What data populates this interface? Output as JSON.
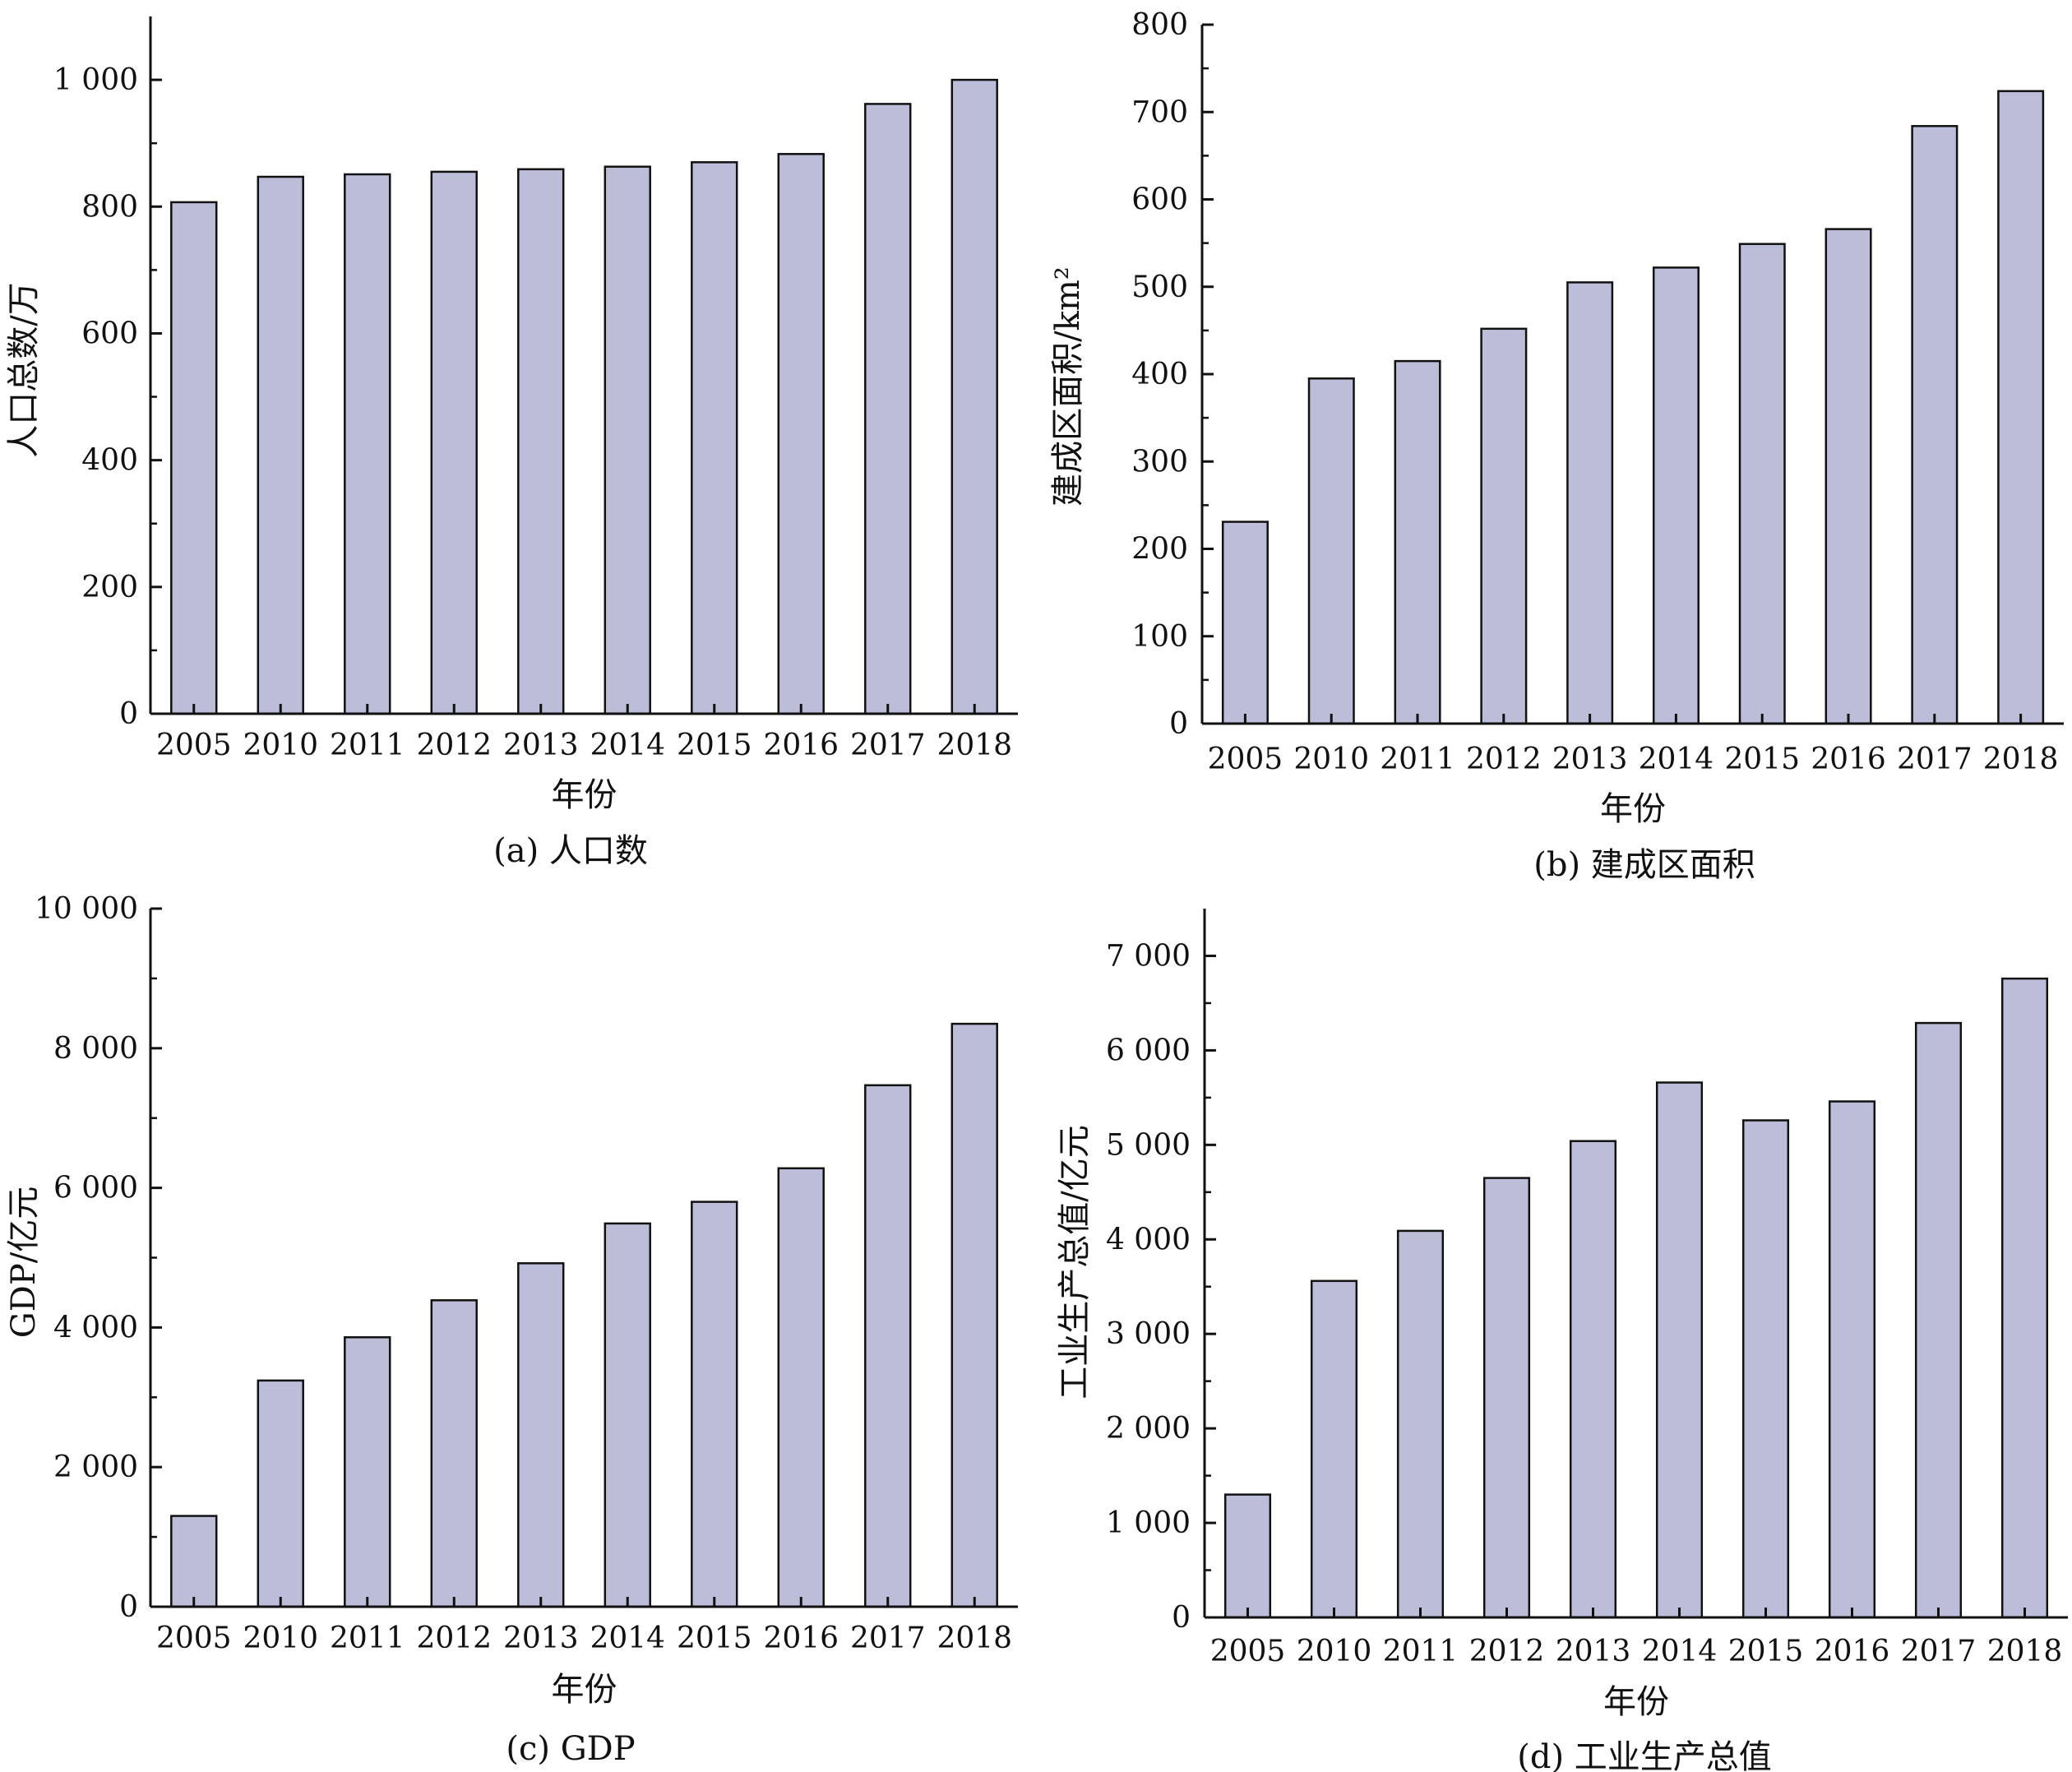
{
  "style": {
    "bar_fill": "#bcbdd9",
    "bar_stroke": "#111111",
    "axis_color": "#111111"
  },
  "chart_data": [
    {
      "type": "bar",
      "caption": "(a) 人口数",
      "categories": [
        "2005",
        "2010",
        "2011",
        "2012",
        "2013",
        "2014",
        "2015",
        "2016",
        "2017",
        "2018"
      ],
      "values": [
        807,
        847,
        851,
        855,
        859,
        863,
        870,
        883,
        962,
        1000
      ],
      "xlabel": "年份",
      "ylabel": "人口总数/万",
      "ylim": [
        0,
        1100
      ],
      "yticks": [
        0,
        200,
        400,
        600,
        800,
        1000
      ],
      "ytick_labels": [
        "0",
        "200",
        "400",
        "600",
        "800",
        "1 000"
      ],
      "grid": false
    },
    {
      "type": "bar",
      "caption": "(b) 建成区面积",
      "categories": [
        "2005",
        "2010",
        "2011",
        "2012",
        "2013",
        "2014",
        "2015",
        "2016",
        "2017",
        "2018"
      ],
      "values": [
        231,
        395,
        415,
        452,
        505,
        522,
        549,
        566,
        684,
        724
      ],
      "xlabel": "年份",
      "ylabel": "建成区面积/km²",
      "ylim": [
        0,
        800
      ],
      "yticks": [
        0,
        100,
        200,
        300,
        400,
        500,
        600,
        700,
        800
      ],
      "ytick_labels": [
        "0",
        "100",
        "200",
        "300",
        "400",
        "500",
        "600",
        "700",
        "800"
      ],
      "grid": false
    },
    {
      "type": "bar",
      "caption": "(c) GDP",
      "categories": [
        "2005",
        "2010",
        "2011",
        "2012",
        "2013",
        "2014",
        "2015",
        "2016",
        "2017",
        "2018"
      ],
      "values": [
        1300,
        3240,
        3860,
        4390,
        4920,
        5490,
        5800,
        6280,
        7470,
        8350
      ],
      "xlabel": "年份",
      "ylabel": "GDP/亿元",
      "ylim": [
        0,
        10000
      ],
      "yticks": [
        0,
        2000,
        4000,
        6000,
        8000,
        10000
      ],
      "ytick_labels": [
        "0",
        "2 000",
        "4 000",
        "6 000",
        "8 000",
        "10 000"
      ],
      "grid": false
    },
    {
      "type": "bar",
      "caption": "(d) 工业生产总值",
      "categories": [
        "2005",
        "2010",
        "2011",
        "2012",
        "2013",
        "2014",
        "2015",
        "2016",
        "2017",
        "2018"
      ],
      "values": [
        1300,
        3560,
        4090,
        4650,
        5040,
        5660,
        5260,
        5460,
        6290,
        6760
      ],
      "xlabel": "年份",
      "ylabel": "工业生产总值/亿元",
      "ylim": [
        0,
        7500
      ],
      "yticks": [
        0,
        1000,
        2000,
        3000,
        4000,
        5000,
        6000,
        7000
      ],
      "ytick_labels": [
        "0",
        "1 000",
        "2 000",
        "3 000",
        "4 000",
        "5 000",
        "6 000",
        "7 000"
      ],
      "grid": false
    }
  ]
}
